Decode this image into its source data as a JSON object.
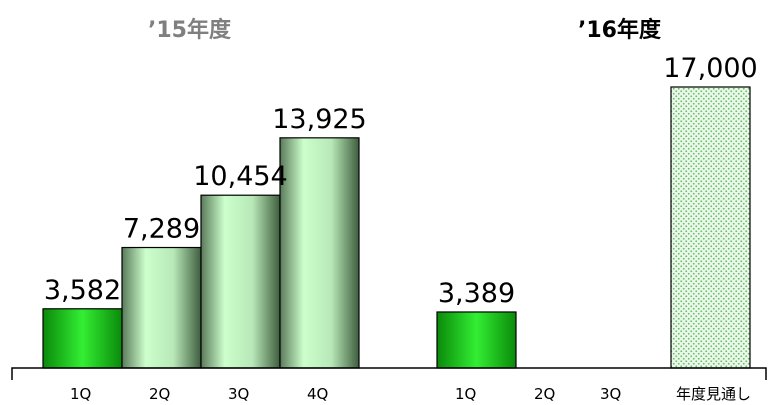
{
  "chart_data": {
    "type": "bar",
    "groups": [
      {
        "label": "’15年度",
        "label_color": "#7f7f7f",
        "categories": [
          "1Q",
          "2Q",
          "3Q",
          "4Q"
        ],
        "values": [
          3582,
          7289,
          10454,
          13925
        ],
        "value_labels": [
          "3,582",
          "7,289",
          "10,454",
          "13,925"
        ]
      },
      {
        "label": "’16年度",
        "label_color": "#000000",
        "categories": [
          "1Q",
          "2Q",
          "3Q",
          "年度見通し"
        ],
        "values": [
          3389,
          null,
          null,
          17000
        ],
        "value_labels": [
          "3,389",
          "",
          "",
          "17,000"
        ]
      }
    ],
    "xlabel": "",
    "ylabel": "",
    "ylim": [
      0,
      17000
    ],
    "grid": false,
    "legend": "none",
    "colors": {
      "q1_fill": "#22cc22",
      "cumulative_fill": "#ccffcc",
      "forecast_fill": "#e8f8e8",
      "forecast_dots": "#66bb66",
      "axis": "#000000"
    }
  }
}
